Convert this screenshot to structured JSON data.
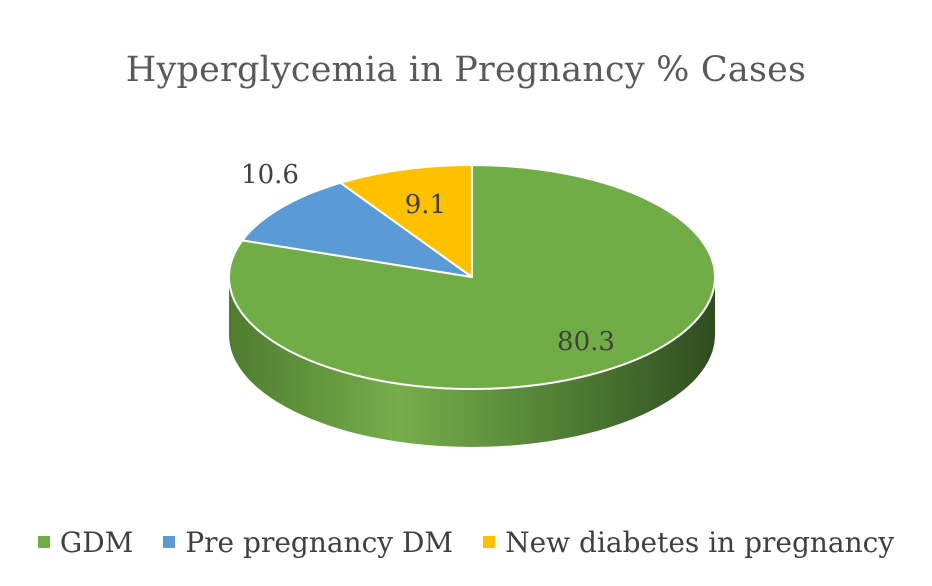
{
  "chart_data": {
    "type": "pie",
    "style": "3d",
    "title": "Hyperglycemia in Pregnancy % Cases",
    "legend_position": "bottom",
    "slices": [
      {
        "name": "GDM",
        "value": 80.3,
        "label": "80.3",
        "color": "#70AD47"
      },
      {
        "name": "Pre pregnancy DM",
        "value": 10.6,
        "label": "10.6",
        "color": "#5B9BD5"
      },
      {
        "name": "New diabetes in pregnancy",
        "value": 9.1,
        "label": "9.1",
        "color": "#FFC000"
      }
    ]
  }
}
